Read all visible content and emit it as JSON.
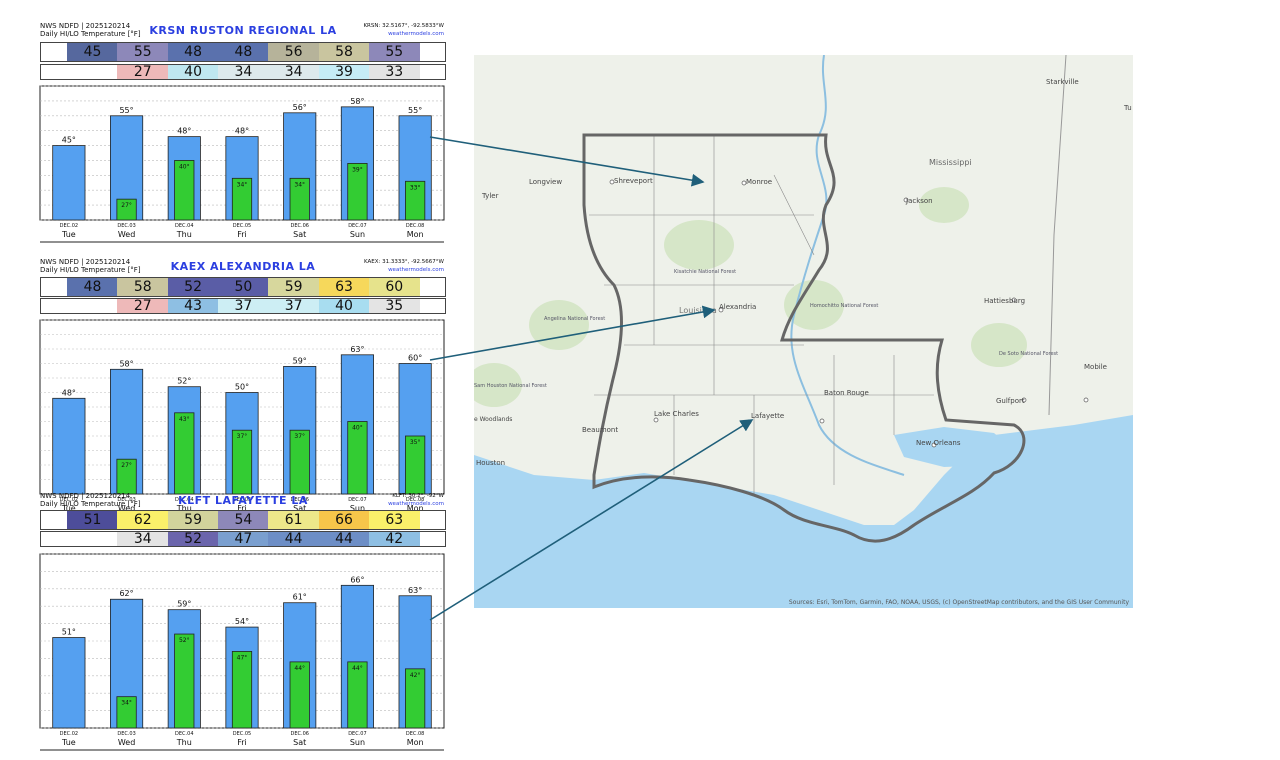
{
  "panels": [
    {
      "header_line1": "NWS NDFD | 2025120214",
      "header_line2": "Daily HI/LO Temperature [°F]",
      "station_title": "KRSN  RUSTON REGIONAL LA",
      "coords": "KRSN: 32.5167°, -92.5833°W",
      "site": "weathermodels.com",
      "hi_strip": [
        "45",
        "55",
        "48",
        "48",
        "56",
        "58",
        "55"
      ],
      "lo_strip": [
        "",
        "27",
        "40",
        "34",
        "34",
        "39",
        "33"
      ],
      "hi_colors": [
        "#56689e",
        "#8d88b9",
        "#5a71ad",
        "#5a71ad",
        "#b6b39a",
        "#c9c59f",
        "#8d88b9"
      ],
      "lo_colors": [
        "#ffffff",
        "#eeb9b9",
        "#bfe7f0",
        "#dde9ec",
        "#dde9ec",
        "#c6ecf6",
        "#e4e4e4"
      ]
    },
    {
      "header_line1": "NWS NDFD | 2025120214",
      "header_line2": "Daily HI/LO Temperature [°F]",
      "station_title": "KAEX  ALEXANDRIA     LA",
      "coords": "KAEX: 31.3333°, -92.5667°W",
      "site": "weathermodels.com",
      "hi_strip": [
        "48",
        "58",
        "52",
        "50",
        "59",
        "63",
        "60"
      ],
      "lo_strip": [
        "",
        "27",
        "43",
        "37",
        "37",
        "40",
        "35"
      ],
      "hi_colors": [
        "#5a71ad",
        "#c9c59f",
        "#5a5da6",
        "#5a5da6",
        "#d7d79d",
        "#f6d85b",
        "#e6e38c"
      ],
      "lo_colors": [
        "#ffffff",
        "#eeb9b9",
        "#8ebfe3",
        "#cdeef4",
        "#cdeef4",
        "#a8ddf0",
        "#e4e4e4"
      ]
    },
    {
      "header_line1": "NWS NDFD | 2025120214",
      "header_line2": "Daily HI/LO Temperature [°F]",
      "station_title": "KLFT  LAFAYETTE     LA",
      "coords": "KLFT: 30.2°, -92°W",
      "site": "weathermodels.com",
      "hi_strip": [
        "51",
        "62",
        "59",
        "54",
        "61",
        "66",
        "63"
      ],
      "lo_strip": [
        "",
        "34",
        "52",
        "47",
        "44",
        "44",
        "42"
      ],
      "hi_colors": [
        "#4d4d9a",
        "#faf06a",
        "#d2d39c",
        "#8d88b9",
        "#ede88a",
        "#f7c64a",
        "#faf06a"
      ],
      "lo_colors": [
        "#ffffff",
        "#e4e4e4",
        "#6b65ac",
        "#7a9fcf",
        "#6d8ec6",
        "#6d8ec6",
        "#8ebfe3"
      ]
    }
  ],
  "chart_data": [
    {
      "type": "bar",
      "categories": [
        "Tue",
        "Wed",
        "Thu",
        "Fri",
        "Sat",
        "Sun",
        "Mon"
      ],
      "dates": [
        "DEC.02",
        "DEC.03",
        "DEC.04",
        "DEC.05",
        "DEC.06",
        "DEC.07",
        "DEC.08"
      ],
      "series": [
        {
          "values": [
            45,
            55,
            48,
            48,
            56,
            58,
            55
          ],
          "labels": [
            "45°",
            "55°",
            "48°",
            "48°",
            "56°",
            "58°",
            "55°"
          ]
        },
        {
          "values": [
            null,
            27,
            40,
            34,
            34,
            39,
            33
          ],
          "labels": [
            "",
            "27°",
            "40°",
            "34°",
            "34°",
            "39°",
            "33°"
          ]
        }
      ],
      "ylim": [
        20,
        65
      ],
      "yticks": [
        "65",
        "60",
        "55",
        "50",
        "45",
        "40",
        "35",
        "30",
        "25",
        "20"
      ],
      "grid": true,
      "colors": {
        "hi": "#55a0f0",
        "lo": "#33cc33"
      }
    },
    {
      "type": "bar",
      "categories": [
        "Tue",
        "Wed",
        "Thu",
        "Fri",
        "Sat",
        "Sun",
        "Mon"
      ],
      "dates": [
        "DEC.02",
        "DEC.03",
        "DEC.04",
        "DEC.05",
        "DEC.06",
        "DEC.07",
        "DEC.08"
      ],
      "series": [
        {
          "values": [
            48,
            58,
            52,
            50,
            59,
            63,
            60
          ],
          "labels": [
            "48°",
            "58°",
            "52°",
            "50°",
            "59°",
            "63°",
            "60°"
          ]
        },
        {
          "values": [
            null,
            27,
            43,
            37,
            37,
            40,
            35
          ],
          "labels": [
            "",
            "27°",
            "43°",
            "37°",
            "37°",
            "40°",
            "35°"
          ]
        }
      ],
      "ylim": [
        15,
        75
      ],
      "yticks": [
        "75",
        "70",
        "65",
        "60",
        "55",
        "50",
        "45",
        "40",
        "35",
        "30",
        "25",
        "20",
        "15"
      ],
      "grid": true,
      "colors": {
        "hi": "#55a0f0",
        "lo": "#33cc33"
      }
    },
    {
      "type": "bar",
      "categories": [
        "Tue",
        "Wed",
        "Thu",
        "Fri",
        "Sat",
        "Sun",
        "Mon"
      ],
      "dates": [
        "DEC.02",
        "DEC.03",
        "DEC.04",
        "DEC.05",
        "DEC.06",
        "DEC.07",
        "DEC.08"
      ],
      "series": [
        {
          "values": [
            51,
            62,
            59,
            54,
            61,
            66,
            63
          ],
          "labels": [
            "51°",
            "62°",
            "59°",
            "54°",
            "61°",
            "66°",
            "63°"
          ]
        },
        {
          "values": [
            null,
            34,
            52,
            47,
            44,
            44,
            42
          ],
          "labels": [
            "",
            "34°",
            "52°",
            "47°",
            "44°",
            "44°",
            "42°"
          ]
        }
      ],
      "ylim": [
        25,
        75
      ],
      "yticks": [
        "75",
        "70",
        "65",
        "60",
        "55",
        "50",
        "45",
        "40",
        "35",
        "30",
        "25"
      ],
      "grid": true,
      "colors": {
        "hi": "#55a0f0",
        "lo": "#33cc33"
      }
    }
  ],
  "map": {
    "labels": {
      "shreveport": "Shreveport",
      "monroe": "Monroe",
      "alexandria": "Alexandria",
      "louisiana": "Louisiana",
      "lake_charles": "Lake Charles",
      "lafayette": "Lafayette",
      "baton_rouge": "Baton Rouge",
      "new_orleans": "New Orleans",
      "mississippi": "Mississippi",
      "jackson": "Jackson",
      "hattiesburg": "Hattiesburg",
      "gulfport": "Gulfport",
      "mobile": "Mobile",
      "houston": "Houston",
      "beaumont": "Beaumont",
      "tyler": "Tyler",
      "longview": "Longview",
      "starkville": "Starkville",
      "kisatchie": "Kisatchie\nNational Forest",
      "angelina": "Angelina\nNational Forest",
      "homochitto": "Homochitto\nNational Forest",
      "desoto": "De Soto\nNational Forest",
      "sam_houston": "Sam Houston\nNational Forest",
      "woodlands": "e Woodlands",
      "tu": "Tu"
    },
    "attribution": "Sources: Esri, TomTom, Garmin, FAO, NOAA, USGS, (c) OpenStreetMap contributors, and the GIS User Community",
    "colors": {
      "land": "#eef1ea",
      "water": "#a9d6f2",
      "border": "#666666",
      "arrow": "#1f5f7a"
    }
  }
}
